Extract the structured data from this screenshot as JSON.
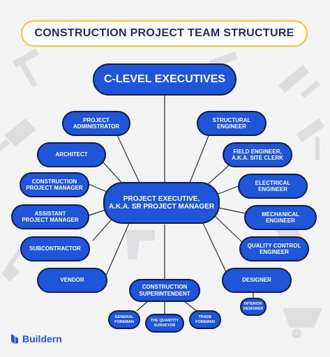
{
  "title": "CONSTRUCTION PROJECT TEAM STRUCTURE",
  "nodes": {
    "c_level": "C-LEVEL EXECUTIVES",
    "project_exec": "PROJECT EXECUTIVE,\nA.K.A. SR PROJECT MANAGER",
    "project_admin": "PROJECT\nADMINISTRATOR",
    "architect": "ARCHITECT",
    "construction_pm": "CONSTRUCTION\nPROJECT MANAGER",
    "assistant_pm": "ASSISTANT\nPROJECT MANAGER",
    "subcontractor": "SUBCONTRACTOR",
    "vendor": "VENDOR",
    "structural_eng": "STRUCTURAL\nENGINEER",
    "field_eng": "FIELD ENGINEER,\nA.K.A. SITE CLERK",
    "electrical_eng": "ELECTRICAL\nENGINEER",
    "mechanical_eng": "MECHANICAL\nENGINEER",
    "qc_eng": "QUALITY CONTROL\nENGINEER",
    "designer": "DESIGNER",
    "interior_designer": "INTERIOR\nDESIGNER",
    "superintendent": "CONSTRUCTION\nSUPERINTENDENT",
    "general_foreman": "GENERAL\nFOREMAN",
    "quantity_surveyor": "THE QUANTITY\nSURVEYOR",
    "trade_foreman": "TRADE\nFOREMAN"
  },
  "brand": {
    "name": "Buildern"
  },
  "colors": {
    "node_fill": "#1f55d9",
    "node_border": "#0d1c4a",
    "title_border": "#f2c230",
    "title_text": "#1d2a6b",
    "line": "#2b2b2b"
  }
}
